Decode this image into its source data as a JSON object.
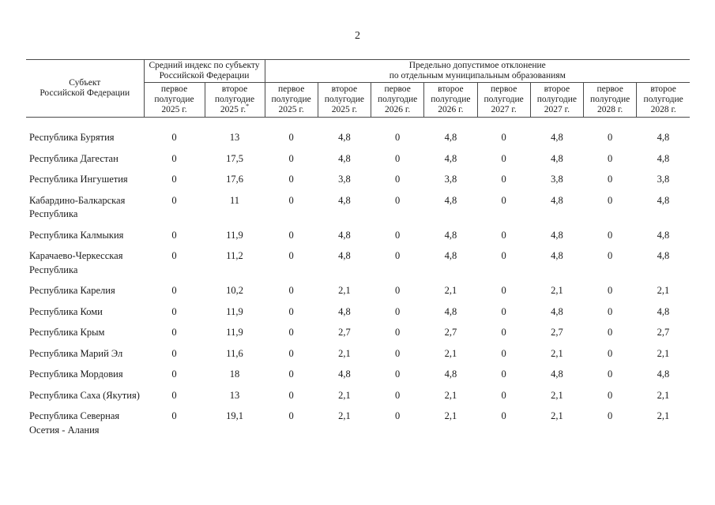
{
  "page": {
    "number": "2"
  },
  "table": {
    "subject_header": {
      "line1": "Субъект",
      "line2": "Российской Федерации"
    },
    "groups": [
      {
        "line1": "Средний индекс по субъекту",
        "line2": "Российской Федерации"
      },
      {
        "line1": "Предельно допустимое отклонение",
        "line2": "по отдельным муниципальным образованиям"
      }
    ],
    "subheaders": [
      {
        "half": "первое",
        "word": "полугодие",
        "year": "2025 г."
      },
      {
        "half": "второе",
        "word": "полугодие",
        "year": "2025 г.",
        "note": "*"
      },
      {
        "half": "первое",
        "word": "полугодие",
        "year": "2025 г."
      },
      {
        "half": "второе",
        "word": "полугодие",
        "year": "2025 г."
      },
      {
        "half": "первое",
        "word": "полугодие",
        "year": "2026 г."
      },
      {
        "half": "второе",
        "word": "полугодие",
        "year": "2026 г."
      },
      {
        "half": "первое",
        "word": "полугодие",
        "year": "2027 г."
      },
      {
        "half": "второе",
        "word": "полугодие",
        "year": "2027 г."
      },
      {
        "half": "первое",
        "word": "полугодие",
        "year": "2028 г."
      },
      {
        "half": "второе",
        "word": "полугодие",
        "year": "2028 г."
      }
    ],
    "rows": [
      {
        "name": "Республика Бурятия",
        "values": [
          "0",
          "13",
          "0",
          "4,8",
          "0",
          "4,8",
          "0",
          "4,8",
          "0",
          "4,8"
        ]
      },
      {
        "name": "Республика Дагестан",
        "values": [
          "0",
          "17,5",
          "0",
          "4,8",
          "0",
          "4,8",
          "0",
          "4,8",
          "0",
          "4,8"
        ]
      },
      {
        "name": "Республика Ингушетия",
        "values": [
          "0",
          "17,6",
          "0",
          "3,8",
          "0",
          "3,8",
          "0",
          "3,8",
          "0",
          "3,8"
        ]
      },
      {
        "name": "Кабардино-Балкарская Республика",
        "values": [
          "0",
          "11",
          "0",
          "4,8",
          "0",
          "4,8",
          "0",
          "4,8",
          "0",
          "4,8"
        ]
      },
      {
        "name": "Республика Калмыкия",
        "values": [
          "0",
          "11,9",
          "0",
          "4,8",
          "0",
          "4,8",
          "0",
          "4,8",
          "0",
          "4,8"
        ]
      },
      {
        "name": "Карачаево-Черкесская Республика",
        "values": [
          "0",
          "11,2",
          "0",
          "4,8",
          "0",
          "4,8",
          "0",
          "4,8",
          "0",
          "4,8"
        ]
      },
      {
        "name": "Республика Карелия",
        "values": [
          "0",
          "10,2",
          "0",
          "2,1",
          "0",
          "2,1",
          "0",
          "2,1",
          "0",
          "2,1"
        ]
      },
      {
        "name": "Республика Коми",
        "values": [
          "0",
          "11,9",
          "0",
          "4,8",
          "0",
          "4,8",
          "0",
          "4,8",
          "0",
          "4,8"
        ]
      },
      {
        "name": "Республика Крым",
        "values": [
          "0",
          "11,9",
          "0",
          "2,7",
          "0",
          "2,7",
          "0",
          "2,7",
          "0",
          "2,7"
        ]
      },
      {
        "name": "Республика Марий Эл",
        "values": [
          "0",
          "11,6",
          "0",
          "2,1",
          "0",
          "2,1",
          "0",
          "2,1",
          "0",
          "2,1"
        ]
      },
      {
        "name": "Республика Мордовия",
        "values": [
          "0",
          "18",
          "0",
          "4,8",
          "0",
          "4,8",
          "0",
          "4,8",
          "0",
          "4,8"
        ]
      },
      {
        "name": "Республика Саха (Якутия)",
        "values": [
          "0",
          "13",
          "0",
          "2,1",
          "0",
          "2,1",
          "0",
          "2,1",
          "0",
          "2,1"
        ]
      },
      {
        "name": "Республика Северная Осетия - Алания",
        "values": [
          "0",
          "19,1",
          "0",
          "2,1",
          "0",
          "2,1",
          "0",
          "2,1",
          "0",
          "2,1"
        ]
      }
    ]
  }
}
